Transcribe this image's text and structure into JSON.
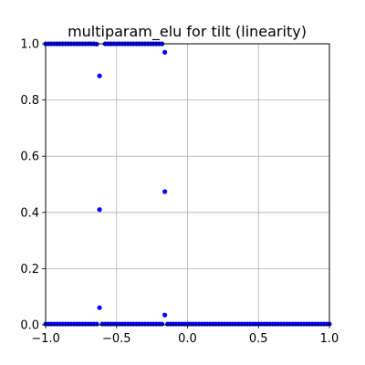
{
  "chart_data": {
    "type": "scatter",
    "title": "multiparam_elu for tilt (linearity)",
    "xlabel": "",
    "ylabel": "",
    "xlim": [
      -1.0,
      1.0
    ],
    "ylim": [
      0.0,
      1.0
    ],
    "xticks": [
      -1.0,
      -0.5,
      0.0,
      0.5,
      1.0
    ],
    "xtick_labels": [
      "−1.0",
      "−0.5",
      "0.0",
      "0.5",
      "1.0"
    ],
    "yticks": [
      0.0,
      0.2,
      0.4,
      0.6,
      0.8,
      1.0
    ],
    "ytick_labels": [
      "0.0",
      "0.2",
      "0.4",
      "0.6",
      "0.8",
      "1.0"
    ],
    "grid": true,
    "point_color": "#0000ff",
    "series": [
      {
        "points": [
          [
            -1.0,
            1.0
          ],
          [
            -0.98,
            1.0
          ],
          [
            -0.96,
            1.0
          ],
          [
            -0.94,
            1.0
          ],
          [
            -0.92,
            1.0
          ],
          [
            -0.9,
            1.0
          ],
          [
            -0.88,
            1.0
          ],
          [
            -0.86,
            1.0
          ],
          [
            -0.84,
            1.0
          ],
          [
            -0.82,
            1.0
          ],
          [
            -0.8,
            1.0
          ],
          [
            -0.78,
            1.0
          ],
          [
            -0.76,
            1.0
          ],
          [
            -0.74,
            1.0
          ],
          [
            -0.72,
            1.0
          ],
          [
            -0.7,
            1.0
          ],
          [
            -0.68,
            1.0
          ],
          [
            -0.66,
            1.0
          ],
          [
            -0.64,
            0.999
          ],
          [
            -0.62,
            0.886
          ],
          [
            -0.62,
            0.41
          ],
          [
            -0.62,
            0.061
          ],
          [
            -0.6,
            0.003
          ],
          [
            -0.58,
            1.0
          ],
          [
            -0.56,
            1.0
          ],
          [
            -0.54,
            1.0
          ],
          [
            -0.52,
            1.0
          ],
          [
            -0.5,
            1.0
          ],
          [
            -0.48,
            1.0
          ],
          [
            -0.46,
            1.0
          ],
          [
            -0.44,
            1.0
          ],
          [
            -0.42,
            1.0
          ],
          [
            -0.4,
            1.0
          ],
          [
            -0.38,
            1.0
          ],
          [
            -0.36,
            1.0
          ],
          [
            -0.34,
            1.0
          ],
          [
            -0.32,
            1.0
          ],
          [
            -0.3,
            1.0
          ],
          [
            -0.28,
            1.0
          ],
          [
            -0.26,
            1.0
          ],
          [
            -0.24,
            1.0
          ],
          [
            -0.22,
            1.0
          ],
          [
            -0.2,
            1.0
          ],
          [
            -0.18,
            1.0
          ],
          [
            -0.16,
            0.97
          ],
          [
            -0.16,
            0.474
          ],
          [
            -0.16,
            0.035
          ],
          [
            -1.0,
            0.003
          ],
          [
            -0.98,
            0.003
          ],
          [
            -0.96,
            0.003
          ],
          [
            -0.94,
            0.003
          ],
          [
            -0.92,
            0.003
          ],
          [
            -0.9,
            0.003
          ],
          [
            -0.88,
            0.003
          ],
          [
            -0.86,
            0.003
          ],
          [
            -0.84,
            0.003
          ],
          [
            -0.82,
            0.003
          ],
          [
            -0.8,
            0.003
          ],
          [
            -0.78,
            0.003
          ],
          [
            -0.76,
            0.003
          ],
          [
            -0.74,
            0.003
          ],
          [
            -0.72,
            0.003
          ],
          [
            -0.7,
            0.003
          ],
          [
            -0.68,
            0.003
          ],
          [
            -0.66,
            0.003
          ],
          [
            -0.64,
            0.003
          ],
          [
            -0.58,
            0.003
          ],
          [
            -0.56,
            0.003
          ],
          [
            -0.54,
            0.003
          ],
          [
            -0.52,
            0.003
          ],
          [
            -0.5,
            0.003
          ],
          [
            -0.48,
            0.003
          ],
          [
            -0.46,
            0.003
          ],
          [
            -0.44,
            0.003
          ],
          [
            -0.42,
            0.003
          ],
          [
            -0.4,
            0.003
          ],
          [
            -0.38,
            0.003
          ],
          [
            -0.36,
            0.003
          ],
          [
            -0.34,
            0.003
          ],
          [
            -0.32,
            0.003
          ],
          [
            -0.3,
            0.003
          ],
          [
            -0.28,
            0.003
          ],
          [
            -0.26,
            0.003
          ],
          [
            -0.24,
            0.003
          ],
          [
            -0.22,
            0.003
          ],
          [
            -0.2,
            0.003
          ],
          [
            -0.18,
            0.003
          ],
          [
            -0.14,
            0.003
          ],
          [
            -0.12,
            0.003
          ],
          [
            -0.1,
            0.003
          ],
          [
            -0.08,
            0.003
          ],
          [
            -0.06,
            0.003
          ],
          [
            -0.04,
            0.003
          ],
          [
            -0.02,
            0.003
          ],
          [
            0.0,
            0.003
          ],
          [
            0.02,
            0.003
          ],
          [
            0.04,
            0.003
          ],
          [
            0.06,
            0.003
          ],
          [
            0.08,
            0.003
          ],
          [
            0.1,
            0.003
          ],
          [
            0.12,
            0.003
          ],
          [
            0.14,
            0.003
          ],
          [
            0.16,
            0.003
          ],
          [
            0.18,
            0.003
          ],
          [
            0.2,
            0.003
          ],
          [
            0.22,
            0.003
          ],
          [
            0.24,
            0.003
          ],
          [
            0.26,
            0.003
          ],
          [
            0.28,
            0.003
          ],
          [
            0.3,
            0.003
          ],
          [
            0.32,
            0.003
          ],
          [
            0.34,
            0.003
          ],
          [
            0.36,
            0.003
          ],
          [
            0.38,
            0.003
          ],
          [
            0.4,
            0.003
          ],
          [
            0.42,
            0.003
          ],
          [
            0.44,
            0.003
          ],
          [
            0.46,
            0.003
          ],
          [
            0.48,
            0.003
          ],
          [
            0.5,
            0.003
          ],
          [
            0.52,
            0.003
          ],
          [
            0.54,
            0.003
          ],
          [
            0.56,
            0.003
          ],
          [
            0.58,
            0.003
          ],
          [
            0.6,
            0.003
          ],
          [
            0.62,
            0.003
          ],
          [
            0.64,
            0.003
          ],
          [
            0.66,
            0.003
          ],
          [
            0.68,
            0.003
          ],
          [
            0.7,
            0.003
          ],
          [
            0.72,
            0.003
          ],
          [
            0.74,
            0.003
          ],
          [
            0.76,
            0.003
          ],
          [
            0.78,
            0.003
          ],
          [
            0.8,
            0.003
          ],
          [
            0.82,
            0.003
          ],
          [
            0.84,
            0.003
          ],
          [
            0.86,
            0.003
          ],
          [
            0.88,
            0.003
          ],
          [
            0.9,
            0.003
          ],
          [
            0.92,
            0.003
          ],
          [
            0.94,
            0.003
          ],
          [
            0.96,
            0.003
          ],
          [
            0.98,
            0.003
          ],
          [
            1.0,
            0.003
          ]
        ]
      }
    ]
  }
}
